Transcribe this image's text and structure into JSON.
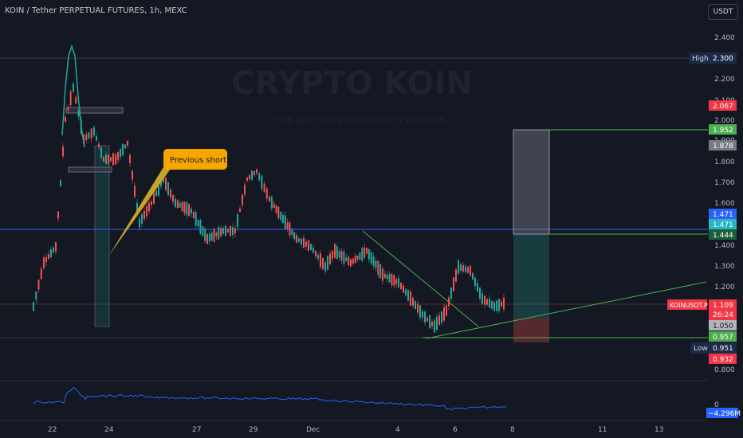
{
  "header": {
    "symbol_title": "KOIN / Tether PERPETUAL FUTURES, 1h, MEXC",
    "currency_button": "USDT"
  },
  "watermark": {
    "brand": "CRYPTO KOIN",
    "tagline": "THE BEST CRYPTOCURRENCY EXPERTS"
  },
  "annotation": {
    "text": "Previous short"
  },
  "price_axis": {
    "ticks": [
      "2.400",
      "2.200",
      "2.100",
      "2.000",
      "1.900",
      "1.800",
      "1.700",
      "1.600",
      "1.400",
      "1.300",
      "1.200",
      "0.800",
      "0"
    ]
  },
  "price_labels": {
    "high_label": "High",
    "high_value": "2.300",
    "low_label": "Low",
    "low_value": "0.951",
    "p2067": "2.067",
    "p1952": "1.952",
    "p1878": "1.878",
    "p1471a": "1.471",
    "p1471b": "1.471",
    "p1444": "1.444",
    "symbol_tag": "KOINUSDT.P",
    "last_price": "1.109",
    "countdown": "26:24",
    "p1050": "1.050",
    "p0957": "0.957",
    "p0932": "0.932",
    "indicator_value": "−4.296M"
  },
  "time_axis": {
    "ticks": [
      "22",
      "24",
      "27",
      "29",
      "Dec",
      "4",
      "6",
      "8",
      "11",
      "13"
    ]
  },
  "colors": {
    "background": "#141823",
    "bull": "#26a69a",
    "bear": "#ef5350",
    "blue_line": "#2962ff",
    "green_line": "#4caf50",
    "annotation": "#f7a600"
  },
  "icons": {
    "currency_button": "usdt-button"
  }
}
